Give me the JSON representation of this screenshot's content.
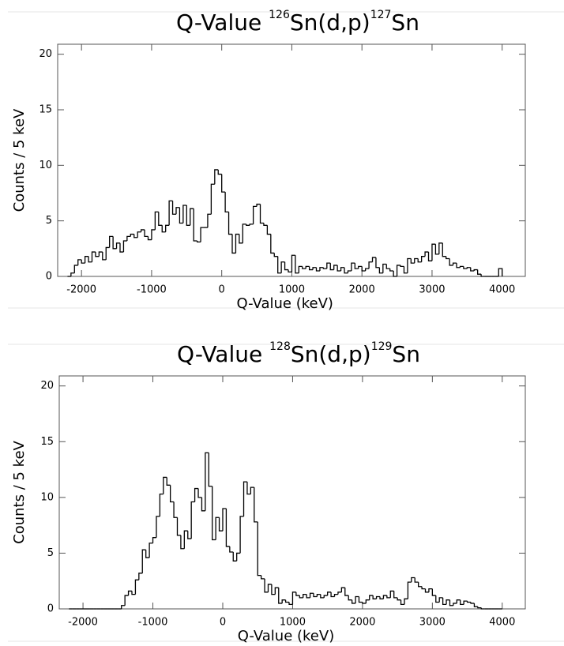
{
  "chart_data": [
    {
      "type": "histogram",
      "title_parts": [
        "Q-Value ",
        "126",
        "Sn(d,p)",
        "127",
        "Sn"
      ],
      "xlabel": "Q-Value (keV)",
      "ylabel": "Counts / 5 keV",
      "xlim": [
        -2340,
        4330
      ],
      "ylim": [
        0,
        20.9
      ],
      "xticks": [
        -2000,
        -1000,
        0,
        1000,
        2000,
        3000,
        4000
      ],
      "yticks": [
        0,
        5,
        10,
        15,
        20
      ],
      "color": "#000000",
      "bins": [
        -2200,
        -2150,
        -2100,
        -2050,
        -2000,
        -1950,
        -1900,
        -1850,
        -1800,
        -1750,
        -1700,
        -1650,
        -1600,
        -1550,
        -1500,
        -1450,
        -1400,
        -1350,
        -1300,
        -1250,
        -1200,
        -1150,
        -1100,
        -1050,
        -1000,
        -950,
        -900,
        -850,
        -800,
        -750,
        -700,
        -650,
        -600,
        -550,
        -500,
        -450,
        -400,
        -350,
        -300,
        -250,
        -200,
        -150,
        -100,
        -50,
        0,
        50,
        100,
        150,
        200,
        250,
        300,
        350,
        400,
        450,
        500,
        550,
        600,
        650,
        700,
        750,
        800,
        850,
        900,
        950,
        1000,
        1050,
        1100,
        1150,
        1200,
        1250,
        1300,
        1350,
        1400,
        1450,
        1500,
        1550,
        1600,
        1650,
        1700,
        1750,
        1800,
        1850,
        1900,
        1950,
        2000,
        2050,
        2100,
        2150,
        2200,
        2250,
        2300,
        2350,
        2400,
        2450,
        2500,
        2550,
        2600,
        2650,
        2700,
        2750,
        2800,
        2850,
        2900,
        2950,
        3000,
        3050,
        3100,
        3150,
        3200,
        3250,
        3300,
        3350,
        3400,
        3450,
        3500,
        3550,
        3600,
        3650,
        3700,
        3750,
        3800,
        3850,
        3900,
        3950,
        4000
      ],
      "values": [
        0,
        0.3,
        1.0,
        1.5,
        1.2,
        1.8,
        1.3,
        2.2,
        1.8,
        2.2,
        1.5,
        2.6,
        3.6,
        2.5,
        3.0,
        2.2,
        3.2,
        3.6,
        3.8,
        3.5,
        4.0,
        4.2,
        3.6,
        3.3,
        4.2,
        5.8,
        4.6,
        4.0,
        4.6,
        6.8,
        5.6,
        6.2,
        4.8,
        6.4,
        4.6,
        6.1,
        3.2,
        3.1,
        4.4,
        4.4,
        5.6,
        8.3,
        9.6,
        9.2,
        7.6,
        5.8,
        3.8,
        2.1,
        3.8,
        3.0,
        4.7,
        4.6,
        4.7,
        6.3,
        6.5,
        4.8,
        4.6,
        3.8,
        2.1,
        1.8,
        0.3,
        1.3,
        0.6,
        0.4,
        1.9,
        0.3,
        0.9,
        0.7,
        0.9,
        0.6,
        0.8,
        0.5,
        0.8,
        0.7,
        1.2,
        0.6,
        1.0,
        0.5,
        0.8,
        0.3,
        0.5,
        1.2,
        0.7,
        0.9,
        0.5,
        0.7,
        1.3,
        1.7,
        0.8,
        0.3,
        1.1,
        0.7,
        0.5,
        0,
        1.0,
        0.9,
        0.3,
        1.6,
        1.2,
        1.6,
        1.3,
        1.8,
        2.2,
        1.4,
        2.9,
        2.0,
        3.0,
        1.8,
        1.6,
        1.0,
        1.2,
        0.8,
        0.9,
        0.7,
        0.8,
        0.5,
        0.6,
        0.2,
        0,
        0,
        0,
        0,
        0,
        0.7
      ]
    },
    {
      "type": "histogram",
      "title_parts": [
        "Q-Value ",
        "128",
        "Sn(d,p)",
        "129",
        "Sn"
      ],
      "xlabel": "Q-Value (keV)",
      "ylabel": "Counts / 5 keV",
      "xlim": [
        -2340,
        4330
      ],
      "ylim": [
        0,
        20.9
      ],
      "xticks": [
        -2000,
        -1000,
        0,
        1000,
        2000,
        3000,
        4000
      ],
      "yticks": [
        0,
        5,
        10,
        15,
        20
      ],
      "color": "#000000",
      "bins": [
        -2200,
        -2150,
        -2100,
        -2050,
        -2000,
        -1950,
        -1900,
        -1850,
        -1800,
        -1750,
        -1700,
        -1650,
        -1600,
        -1550,
        -1500,
        -1450,
        -1400,
        -1350,
        -1300,
        -1250,
        -1200,
        -1150,
        -1100,
        -1050,
        -1000,
        -950,
        -900,
        -850,
        -800,
        -750,
        -700,
        -650,
        -600,
        -550,
        -500,
        -450,
        -400,
        -350,
        -300,
        -250,
        -200,
        -150,
        -100,
        -50,
        0,
        50,
        100,
        150,
        200,
        250,
        300,
        350,
        400,
        450,
        500,
        550,
        600,
        650,
        700,
        750,
        800,
        850,
        900,
        950,
        1000,
        1050,
        1100,
        1150,
        1200,
        1250,
        1300,
        1350,
        1400,
        1450,
        1500,
        1550,
        1600,
        1650,
        1700,
        1750,
        1800,
        1850,
        1900,
        1950,
        2000,
        2050,
        2100,
        2150,
        2200,
        2250,
        2300,
        2350,
        2400,
        2450,
        2500,
        2550,
        2600,
        2650,
        2700,
        2750,
        2800,
        2850,
        2900,
        2950,
        3000,
        3050,
        3100,
        3150,
        3200,
        3250,
        3300,
        3350,
        3400,
        3450,
        3500,
        3550,
        3600,
        3650,
        3700,
        3750,
        3800,
        3850,
        3900,
        3950,
        4000
      ],
      "values": [
        0,
        0,
        0,
        0,
        0,
        0,
        0,
        0,
        0,
        0,
        0,
        0,
        0,
        0,
        0,
        0.3,
        1.2,
        1.6,
        1.3,
        2.6,
        3.2,
        5.3,
        4.6,
        5.9,
        6.4,
        8.3,
        10.3,
        11.8,
        11.1,
        9.6,
        8.2,
        6.6,
        5.4,
        7.0,
        6.3,
        9.6,
        10.8,
        10.0,
        8.8,
        14.0,
        11.0,
        6.2,
        8.2,
        7.0,
        9.0,
        5.6,
        5.1,
        4.3,
        5.0,
        8.3,
        11.4,
        10.3,
        10.9,
        7.8,
        3.0,
        2.7,
        1.5,
        2.2,
        1.3,
        1.9,
        0.5,
        0.8,
        0.6,
        0.4,
        1.5,
        1.2,
        1.0,
        1.3,
        1.0,
        1.4,
        1.1,
        1.3,
        1.0,
        1.2,
        1.5,
        1.1,
        1.3,
        1.5,
        1.9,
        1.2,
        0.8,
        0.5,
        1.1,
        0.6,
        0.5,
        0.8,
        1.2,
        0.9,
        1.1,
        0.9,
        1.2,
        1.0,
        1.6,
        1.0,
        0.8,
        0.4,
        0.9,
        2.4,
        2.8,
        2.4,
        2.0,
        1.8,
        1.5,
        1.8,
        1.2,
        0.6,
        1.0,
        0.4,
        0.8,
        0.3,
        0.5,
        0.8,
        0.4,
        0.7,
        0.6,
        0.5,
        0.2,
        0.1,
        0,
        0,
        0,
        0,
        0,
        0
      ]
    }
  ]
}
